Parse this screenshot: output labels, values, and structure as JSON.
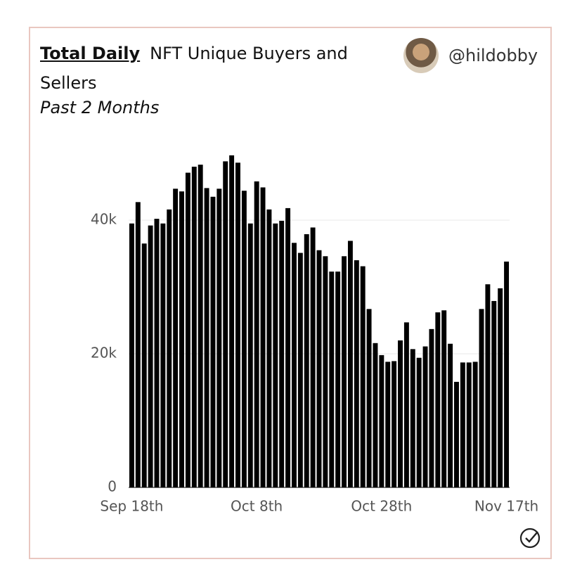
{
  "header": {
    "link": "Total Daily",
    "title": "NFT Unique Buyers and Sellers",
    "subtitle": "Past 2 Months",
    "author": "@hildobby"
  },
  "chart_data": {
    "type": "bar",
    "color": "#000000",
    "grid": true,
    "categories": [
      "Sep 18th",
      null,
      null,
      null,
      null,
      null,
      null,
      null,
      null,
      null,
      null,
      null,
      null,
      null,
      null,
      null,
      null,
      null,
      null,
      null,
      "Oct 8th",
      null,
      null,
      null,
      null,
      null,
      null,
      null,
      null,
      null,
      null,
      null,
      null,
      null,
      null,
      null,
      null,
      null,
      null,
      null,
      "Oct 28th",
      null,
      null,
      null,
      null,
      null,
      null,
      null,
      null,
      null,
      null,
      null,
      null,
      null,
      null,
      null,
      null,
      null,
      null,
      null,
      "Nov 17th"
    ],
    "values": [
      39500,
      42700,
      36500,
      39200,
      40200,
      39500,
      41600,
      44700,
      44300,
      47100,
      48000,
      48300,
      44800,
      43500,
      44700,
      48800,
      49700,
      48600,
      44400,
      39500,
      45800,
      44900,
      41600,
      39500,
      39900,
      41800,
      36600,
      35100,
      37900,
      38900,
      35500,
      34600,
      32300,
      32300,
      34600,
      36900,
      34000,
      33100,
      26700,
      21600,
      19800,
      18800,
      18900,
      22000,
      24700,
      20700,
      19400,
      21100,
      23700,
      26200,
      26500,
      21500,
      15800,
      18700,
      18700,
      18800,
      26700,
      30400,
      27900,
      29800,
      33800
    ],
    "ylim": [
      0,
      50000
    ],
    "yticks": [
      0,
      {
        "value": 20000,
        "label": "20k"
      },
      {
        "value": 40000,
        "label": "40k"
      }
    ]
  }
}
